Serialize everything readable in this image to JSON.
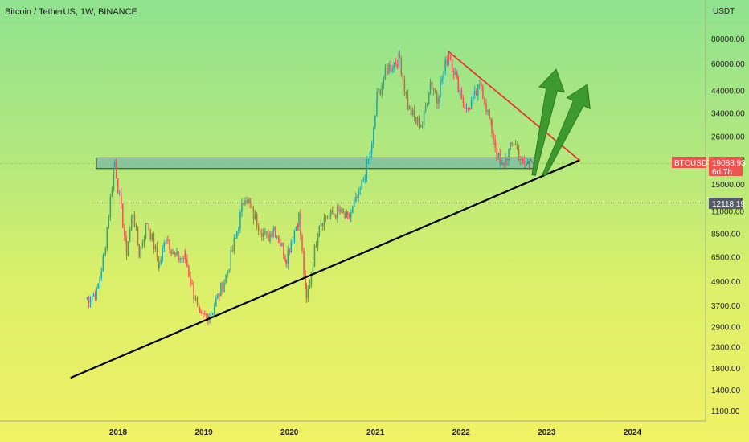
{
  "header": {
    "title": "Bitcoin / TetherUS, 1W, BINANCE"
  },
  "price_axis": {
    "currency": "USDT",
    "ticks": [
      "80000.00",
      "60000.00",
      "44000.00",
      "34000.00",
      "26000.00",
      "20000.00",
      "15000.00",
      "11000.00",
      "8500.00",
      "6500.00",
      "4900.00",
      "3700.00",
      "2900.00",
      "2300.00",
      "1800.00",
      "1400.00",
      "1100.00"
    ]
  },
  "time_axis": {
    "ticks": [
      "2018",
      "2019",
      "2020",
      "2021",
      "2022",
      "2023",
      "2024"
    ]
  },
  "badges": {
    "symbol": "BTCUSDT",
    "last_price": "19088.93",
    "countdown": "6d 7h",
    "horizontal_level": "12118.19"
  },
  "colors": {
    "bull": "#26a69a",
    "bear": "#ef5350",
    "support_line": "#000000",
    "resistance_line": "#e53935",
    "zone_fill": "#7fbfa0",
    "arrow": "#3c9a2e",
    "price_badge": "#ef5350",
    "level_badge": "#545a66"
  },
  "chart_data": {
    "type": "candlestick",
    "title": "Bitcoin / TetherUS, 1W, BINANCE",
    "scale": "log",
    "ylim": [
      1000,
      95000
    ],
    "xlim": [
      "2017-06-01",
      "2024-09-01"
    ],
    "series": [
      {
        "name": "BTCUSDT",
        "points": [
          [
            "2017-08-15",
            4000
          ],
          [
            "2017-10-01",
            4300
          ],
          [
            "2017-11-01",
            6500
          ],
          [
            "2017-12-17",
            19500
          ],
          [
            "2018-02-06",
            7000
          ],
          [
            "2018-03-05",
            11000
          ],
          [
            "2018-04-01",
            6800
          ],
          [
            "2018-05-05",
            9800
          ],
          [
            "2018-06-25",
            5900
          ],
          [
            "2018-07-25",
            8300
          ],
          [
            "2018-09-01",
            6500
          ],
          [
            "2018-10-15",
            6400
          ],
          [
            "2018-11-20",
            4200
          ],
          [
            "2018-12-15",
            3200
          ],
          [
            "2019-02-01",
            3400
          ],
          [
            "2019-04-05",
            5200
          ],
          [
            "2019-05-15",
            8000
          ],
          [
            "2019-06-26",
            13500
          ],
          [
            "2019-08-01",
            10500
          ],
          [
            "2019-09-26",
            8000
          ],
          [
            "2019-10-26",
            9200
          ],
          [
            "2019-12-18",
            6500
          ],
          [
            "2020-02-10",
            10400
          ],
          [
            "2020-03-13",
            3900
          ],
          [
            "2020-05-07",
            9800
          ],
          [
            "2020-07-27",
            11000
          ],
          [
            "2020-09-05",
            10000
          ],
          [
            "2020-10-21",
            13000
          ],
          [
            "2020-12-17",
            23000
          ],
          [
            "2021-01-08",
            41000
          ],
          [
            "2021-02-21",
            57000
          ],
          [
            "2021-04-14",
            64000
          ],
          [
            "2021-05-19",
            37000
          ],
          [
            "2021-06-22",
            31000
          ],
          [
            "2021-07-20",
            30000
          ],
          [
            "2021-08-23",
            49000
          ],
          [
            "2021-09-21",
            41000
          ],
          [
            "2021-11-10",
            69000
          ],
          [
            "2021-12-20",
            47000
          ],
          [
            "2022-01-24",
            35000
          ],
          [
            "2022-03-28",
            47000
          ],
          [
            "2022-05-12",
            28000
          ],
          [
            "2022-06-18",
            18000
          ],
          [
            "2022-08-14",
            24500
          ],
          [
            "2022-09-20",
            19000
          ],
          [
            "2022-10-20",
            19088.93
          ]
        ]
      }
    ],
    "support_zone": [
      18500,
      20000
    ],
    "horizontal_level": 12118.19,
    "last_price": 19088.93,
    "trendlines": [
      {
        "name": "rising support",
        "from": [
          "2017-06-15",
          1620
        ],
        "to": [
          "2023-05-20",
          19800
        ]
      },
      {
        "name": "descending resistance",
        "from": [
          "2021-11-10",
          69000
        ],
        "to": [
          "2023-05-20",
          19800
        ]
      }
    ],
    "arrows": 2
  }
}
